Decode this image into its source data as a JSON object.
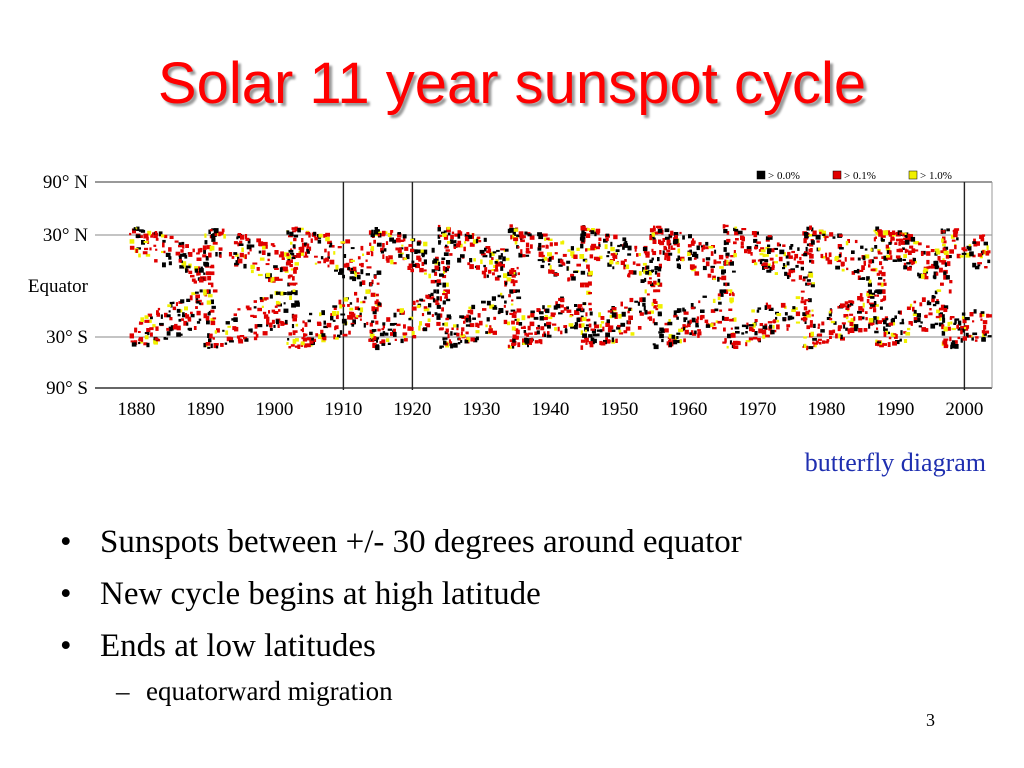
{
  "slide": {
    "title": "Solar 11 year sunspot cycle",
    "caption": "butterfly diagram",
    "bullets": [
      "Sunspots between +/- 30 degrees around equator",
      "New cycle begins at high latitude",
      "Ends at low latitudes"
    ],
    "sub_bullets": [
      "equatorward migration"
    ],
    "page_number": "3"
  },
  "chart_data": {
    "type": "scatter",
    "y_tick_labels": [
      "90° N",
      "30° N",
      "Equator",
      "30° S",
      "90° S"
    ],
    "x_tick_labels": [
      "1880",
      "1890",
      "1900",
      "1910",
      "1920",
      "1930",
      "1940",
      "1950",
      "1960",
      "1970",
      "1980",
      "1990",
      "2000"
    ],
    "xlim": [
      1874,
      2004
    ],
    "legend": [
      {
        "label": "> 0.0%",
        "color": "#000000"
      },
      {
        "label": "> 0.1%",
        "color": "#e00000"
      },
      {
        "label": "> 1.0%",
        "color": "#f0f000"
      }
    ],
    "colors": {
      "low": "#000000",
      "mid": "#e00000",
      "high": "#f0f000"
    },
    "cycle_starts": [
      1878.9,
      1889.6,
      1901.7,
      1913.6,
      1923.6,
      1933.8,
      1944.2,
      1954.3,
      1964.9,
      1976.5,
      1986.8,
      1996.4
    ]
  }
}
